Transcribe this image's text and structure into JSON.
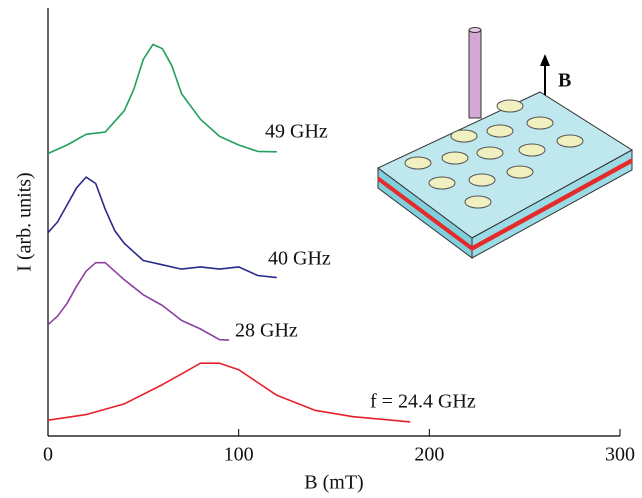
{
  "chart_data": {
    "type": "line",
    "x_label": "B (mT)",
    "y_label": "I (arb. units)",
    "xlim": [
      0,
      300
    ],
    "xticks": [
      0,
      100,
      200,
      300
    ],
    "ylim": [
      0,
      100
    ],
    "annotations": [
      "B"
    ],
    "series": [
      {
        "name": "49 GHz",
        "color": "#22a05a",
        "x": [
          0,
          10,
          20,
          30,
          40,
          45,
          50,
          55,
          60,
          65,
          70,
          80,
          90,
          100,
          110,
          120
        ],
        "values": [
          66,
          68,
          70.5,
          71,
          76,
          81,
          88,
          91.5,
          90.5,
          86.5,
          80,
          74,
          70,
          68,
          66.5,
          66.4
        ]
      },
      {
        "name": "40 GHz",
        "color": "#2b2a8c",
        "x": [
          0,
          5,
          10,
          15,
          20,
          25,
          30,
          35,
          40,
          50,
          60,
          70,
          80,
          90,
          100,
          110,
          120
        ],
        "values": [
          47.5,
          50,
          54,
          58,
          60.5,
          59,
          53,
          48,
          45,
          41,
          40,
          39,
          39.5,
          39,
          39.5,
          37.5,
          37
        ]
      },
      {
        "name": "28 GHz",
        "color": "#8e3fa0",
        "x": [
          0,
          5,
          10,
          15,
          20,
          25,
          30,
          35,
          40,
          50,
          60,
          70,
          80,
          90,
          95
        ],
        "values": [
          26,
          28,
          31,
          35,
          38.5,
          40.5,
          40.5,
          38.5,
          36.5,
          33,
          30.5,
          27,
          25,
          22.5,
          22.4
        ]
      },
      {
        "name": "f = 24.4 GHz",
        "color": "#e8202a",
        "x": [
          0,
          20,
          40,
          60,
          70,
          80,
          90,
          100,
          110,
          120,
          140,
          160,
          190
        ],
        "values": [
          3.7,
          5,
          7.5,
          12,
          14.5,
          17,
          17,
          15.5,
          12.5,
          9.5,
          6,
          4.5,
          3.3
        ]
      }
    ]
  }
}
